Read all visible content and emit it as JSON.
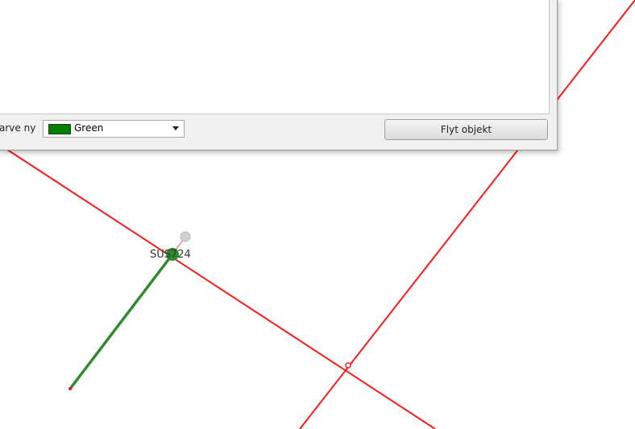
{
  "toolbar": {
    "color_label": "arve ny",
    "color_value": "Green",
    "button": "Flyt objekt"
  },
  "map": {
    "node_label": "SUS724"
  }
}
